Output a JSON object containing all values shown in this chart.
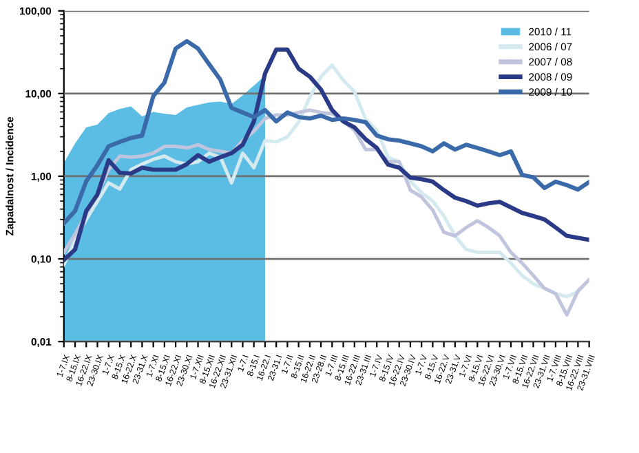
{
  "chart_data": {
    "type": "line",
    "ylabel": "Zapadalnost / Incidence",
    "categories": [
      "1-7.IX",
      "8-15.IX",
      "16-22.IX",
      "23-30.IX",
      "1-7.X",
      "8-15.X",
      "16-22.X",
      "23-31.X",
      "1-7.XI",
      "8-15.XI",
      "16-22.XI",
      "23-30.XI",
      "1-7.XII",
      "8-15.XII",
      "16-22.XII",
      "23-31.XII",
      "1-7.I",
      "8-15.I",
      "16-22.I",
      "23-31.I",
      "1-7.II",
      "8-15.II",
      "16-22.II",
      "23-28.II",
      "1-7.III",
      "8-15.III",
      "16-22.III",
      "23-31.III",
      "1-7.IV",
      "8-15.IV",
      "16-22.IV",
      "23-30.IV",
      "1-7.V",
      "8-15.V",
      "16-22.V",
      "23-31.V",
      "1-7.VI",
      "8-15.VI",
      "16-22.VI",
      "23-30.VI",
      "1-7.VII",
      "8-15.VII",
      "16-22.VII",
      "23-31.VII",
      "1-7.VIII",
      "8-15.VIII",
      "16-22.VIII",
      "23-31.VIII"
    ],
    "series": [
      {
        "name": "2010 / 11",
        "type": "area",
        "color": "#5bbce4",
        "values": [
          1.45,
          2.5,
          3.9,
          4.2,
          5.8,
          6.5,
          7.0,
          5.3,
          6.0,
          5.7,
          5.5,
          6.8,
          7.3,
          7.8,
          8.0,
          7.5,
          9.5,
          12.5,
          16.5,
          null,
          null,
          null,
          null,
          null,
          null,
          null,
          null,
          null,
          null,
          null,
          null,
          null,
          null,
          null,
          null,
          null,
          null,
          null,
          null,
          null,
          null,
          null,
          null,
          null,
          null,
          null,
          null,
          null
        ]
      },
      {
        "name": "2006 / 07",
        "color": "#d5eaef",
        "values": [
          0.085,
          0.17,
          0.3,
          0.5,
          0.83,
          0.7,
          1.2,
          1.4,
          1.6,
          1.75,
          1.5,
          1.4,
          1.5,
          1.9,
          1.7,
          0.83,
          1.9,
          1.27,
          2.7,
          2.6,
          3.0,
          4.5,
          9.0,
          16,
          22,
          14.5,
          10.5,
          4.9,
          3.6,
          1.7,
          1.5,
          0.87,
          0.63,
          0.5,
          0.33,
          0.19,
          0.13,
          0.12,
          0.12,
          0.12,
          0.089,
          0.063,
          0.05,
          0.044,
          0.038,
          0.035,
          0.04,
          0.056
        ]
      },
      {
        "name": "2007 / 08",
        "color": "#c0c4dc",
        "values": [
          0.12,
          0.2,
          0.35,
          0.6,
          1.2,
          1.75,
          1.7,
          1.75,
          1.9,
          2.3,
          2.3,
          2.2,
          2.4,
          2.1,
          2.0,
          1.9,
          2.7,
          3.5,
          5.0,
          5.5,
          5.5,
          5.9,
          6.3,
          5.9,
          5.7,
          4.6,
          3.6,
          2.1,
          2.1,
          1.5,
          1.5,
          0.68,
          0.56,
          0.39,
          0.21,
          0.19,
          0.24,
          0.29,
          0.24,
          0.19,
          0.12,
          0.089,
          0.063,
          0.044,
          0.038,
          0.021,
          0.041,
          0.056
        ]
      },
      {
        "name": "2008 / 09",
        "color": "#2b3a86",
        "values": [
          0.097,
          0.13,
          0.38,
          0.6,
          1.56,
          1.1,
          1.08,
          1.27,
          1.2,
          1.2,
          1.2,
          1.4,
          1.8,
          1.5,
          1.7,
          1.9,
          2.4,
          4.6,
          17.5,
          34,
          34,
          20,
          16,
          11.2,
          6.3,
          4.6,
          3.9,
          2.8,
          2.2,
          1.38,
          1.27,
          0.96,
          0.92,
          0.86,
          0.68,
          0.55,
          0.5,
          0.44,
          0.47,
          0.49,
          0.42,
          0.36,
          0.33,
          0.3,
          0.24,
          0.19,
          0.18,
          0.17
        ]
      },
      {
        "name": "2009 / 10",
        "color": "#3a6aaa",
        "values": [
          0.27,
          0.38,
          0.87,
          1.36,
          2.3,
          2.6,
          2.9,
          3.1,
          9.3,
          13.6,
          35,
          43,
          35,
          22.6,
          14.7,
          6.7,
          5.9,
          5.2,
          6.3,
          4.6,
          5.9,
          5.2,
          5.0,
          5.4,
          4.8,
          5.0,
          4.8,
          4.5,
          3.1,
          2.8,
          2.7,
          2.5,
          2.3,
          2.0,
          2.5,
          2.1,
          2.4,
          2.2,
          2.0,
          1.8,
          2.0,
          1.04,
          0.97,
          0.72,
          0.86,
          0.78,
          0.69,
          0.85
        ]
      }
    ],
    "log": "y",
    "ylim": [
      0.01,
      100
    ],
    "yticks": [
      {
        "value": 0.01,
        "label": "0,01"
      },
      {
        "value": 0.1,
        "label": "0,10"
      },
      {
        "value": 1,
        "label": "1,00"
      },
      {
        "value": 10,
        "label": "10,00"
      },
      {
        "value": 100,
        "label": "100,00"
      }
    ],
    "grid": "y",
    "legend": "top right"
  }
}
